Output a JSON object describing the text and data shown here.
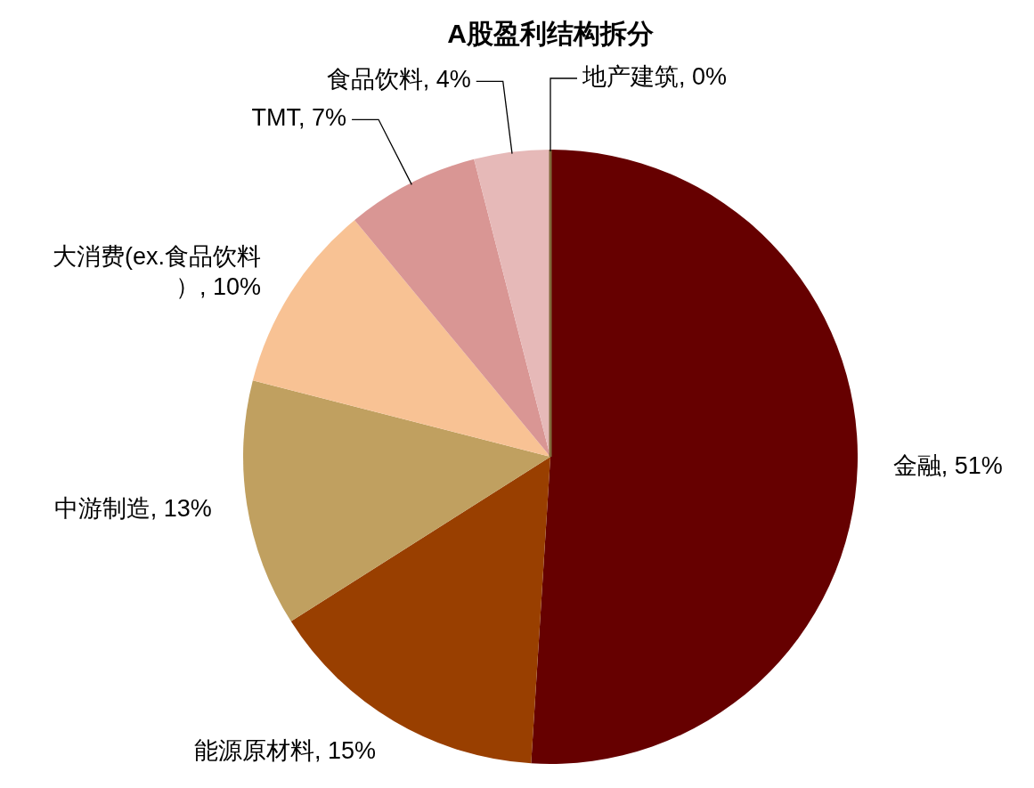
{
  "chart_data": {
    "type": "pie",
    "title": "A股盈利结构拆分",
    "categories": [
      "金融",
      "能源原材料",
      "中游制造",
      "大消费(ex.食品饮料）",
      "TMT",
      "食品饮料",
      "地产建筑"
    ],
    "values": [
      51,
      15,
      13,
      10,
      7,
      4,
      0
    ],
    "colors": [
      "#660000",
      "#993f00",
      "#c0a060",
      "#f8c294",
      "#d99694",
      "#e6b9b8",
      "#7f6a3a"
    ],
    "value_labels": [
      ", 51%",
      ", 15%",
      ", 13%",
      ", 10%",
      ", 7%",
      ", 4%",
      ", 0%"
    ]
  }
}
